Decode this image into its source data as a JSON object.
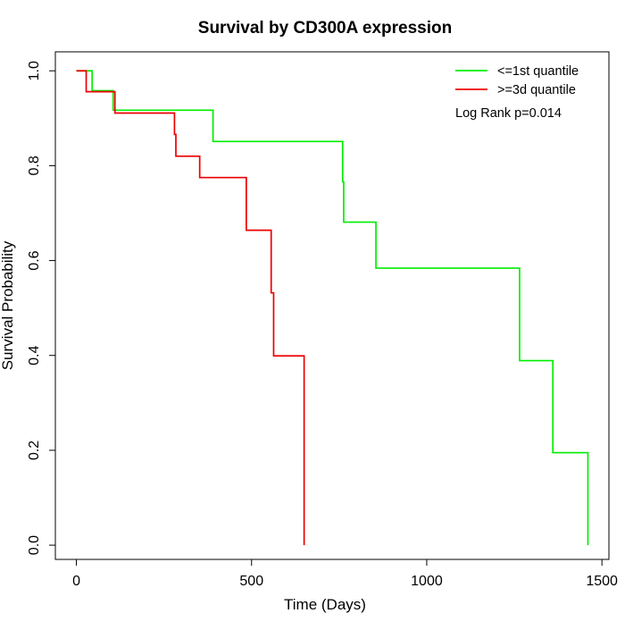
{
  "chart_data": {
    "type": "line",
    "title": "Survival by CD300A expression",
    "xlabel": "Time (Days)",
    "ylabel": "Survival Probability",
    "xlim": [
      -60,
      1520
    ],
    "ylim": [
      -0.03,
      1.04
    ],
    "x_ticks": [
      0,
      500,
      1000,
      1500
    ],
    "y_ticks": [
      0.0,
      0.2,
      0.4,
      0.6,
      0.8,
      1.0
    ],
    "x_tick_labels": [
      "0",
      "500",
      "1000",
      "1500"
    ],
    "y_tick_labels": [
      "0.0",
      "0.2",
      "0.4",
      "0.6",
      "0.8",
      "1.0"
    ],
    "legend_position": "top-right",
    "annotation": "Log Rank p=0.014",
    "series": [
      {
        "name": "<=1st quantile",
        "color": "#00ee00",
        "step": true,
        "points": [
          [
            0,
            1.0
          ],
          [
            45,
            1.0
          ],
          [
            45,
            0.958
          ],
          [
            105,
            0.958
          ],
          [
            105,
            0.917
          ],
          [
            390,
            0.917
          ],
          [
            390,
            0.851
          ],
          [
            760,
            0.851
          ],
          [
            760,
            0.766
          ],
          [
            763,
            0.766
          ],
          [
            763,
            0.681
          ],
          [
            855,
            0.681
          ],
          [
            855,
            0.584
          ],
          [
            1265,
            0.584
          ],
          [
            1265,
            0.389
          ],
          [
            1360,
            0.389
          ],
          [
            1360,
            0.195
          ],
          [
            1460,
            0.195
          ],
          [
            1460,
            0.0
          ]
        ]
      },
      {
        "name": ">=3d quantile",
        "color": "#ee0000",
        "step": true,
        "points": [
          [
            0,
            1.0
          ],
          [
            28,
            1.0
          ],
          [
            28,
            0.956
          ],
          [
            110,
            0.956
          ],
          [
            110,
            0.911
          ],
          [
            280,
            0.911
          ],
          [
            280,
            0.866
          ],
          [
            284,
            0.866
          ],
          [
            284,
            0.82
          ],
          [
            352,
            0.82
          ],
          [
            352,
            0.775
          ],
          [
            485,
            0.775
          ],
          [
            485,
            0.664
          ],
          [
            556,
            0.664
          ],
          [
            556,
            0.532
          ],
          [
            563,
            0.532
          ],
          [
            563,
            0.399
          ],
          [
            650,
            0.399
          ],
          [
            650,
            0.0
          ]
        ]
      }
    ]
  }
}
